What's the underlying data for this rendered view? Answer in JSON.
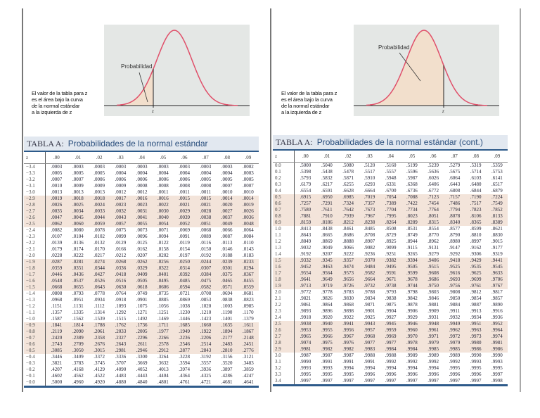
{
  "left": {
    "curve_label": "Probabilidad",
    "z_label": "z",
    "caption": [
      "El valor de la tabla para z",
      "es el área bajo la curva",
      "de la normal estándar",
      "a la izquierda de z"
    ],
    "title_prefix": "TABLA  A:",
    "title": "Probabilidades de la normal estándar",
    "columns": [
      "z",
      ".00",
      ".01",
      ".02",
      ".03",
      ".04",
      ".05",
      ".06",
      ".07",
      ".08",
      ".09"
    ],
    "rows": [
      [
        "−3.4",
        ".0003",
        ".0003",
        ".0003",
        ".0003",
        ".0003",
        ".0003",
        ".0003",
        ".0003",
        ".0003",
        ".0002"
      ],
      [
        "−3.3",
        ".0005",
        ".0005",
        ".0005",
        ".0004",
        ".0004",
        ".0004",
        ".0004",
        ".0004",
        ".0004",
        ".0003"
      ],
      [
        "−3.2",
        ".0007",
        ".0007",
        ".0006",
        ".0006",
        ".0006",
        ".0006",
        ".0006",
        ".0005",
        ".0005",
        ".0005"
      ],
      [
        "−3.1",
        ".0010",
        ".0009",
        ".0009",
        ".0009",
        ".0008",
        ".0008",
        ".0008",
        ".0008",
        ".0007",
        ".0007"
      ],
      [
        "−3.0",
        ".0013",
        ".0013",
        ".0013",
        ".0012",
        ".0012",
        ".0011",
        ".0011",
        ".0011",
        ".0010",
        ".0010"
      ],
      [
        "−2.9",
        ".0019",
        ".0018",
        ".0018",
        ".0017",
        ".0016",
        ".0016",
        ".0015",
        ".0015",
        ".0014",
        ".0014"
      ],
      [
        "−2.8",
        ".0026",
        ".0025",
        ".0024",
        ".0023",
        ".0023",
        ".0022",
        ".0021",
        ".0021",
        ".0020",
        ".0019"
      ],
      [
        "−2.7",
        ".0035",
        ".0034",
        ".0033",
        ".0032",
        ".0031",
        ".0030",
        ".0029",
        ".0028",
        ".0027",
        ".0026"
      ],
      [
        "−2.6",
        ".0047",
        ".0045",
        ".0044",
        ".0043",
        ".0041",
        ".0040",
        ".0039",
        ".0038",
        ".0037",
        ".0036"
      ],
      [
        "−2.5",
        ".0062",
        ".0060",
        ".0059",
        ".0057",
        ".0055",
        ".0054",
        ".0052",
        ".0051",
        ".0049",
        ".0048"
      ],
      [
        "−2.4",
        ".0082",
        ".0080",
        ".0078",
        ".0075",
        ".0073",
        ".0071",
        ".0069",
        ".0068",
        ".0066",
        ".0064"
      ],
      [
        "−2.3",
        ".0107",
        ".0104",
        ".0102",
        ".0099",
        ".0096",
        ".0094",
        ".0091",
        ".0089",
        ".0087",
        ".0084"
      ],
      [
        "−2.2",
        ".0139",
        ".0136",
        ".0132",
        ".0129",
        ".0125",
        ".0122",
        ".0119",
        ".0116",
        ".0113",
        ".0110"
      ],
      [
        "−2.1",
        ".0179",
        ".0174",
        ".0170",
        ".0166",
        ".0162",
        ".0158",
        ".0154",
        ".0150",
        ".0146",
        ".0143"
      ],
      [
        "−2.0",
        ".0228",
        ".0222",
        ".0217",
        ".0212",
        ".0207",
        ".0202",
        ".0197",
        ".0192",
        ".0188",
        ".0183"
      ],
      [
        "−1.9",
        ".0287",
        ".0281",
        ".0274",
        ".0268",
        ".0262",
        ".0256",
        ".0250",
        ".0244",
        ".0239",
        ".0233"
      ],
      [
        "−1.8",
        ".0359",
        ".0351",
        ".0344",
        ".0336",
        ".0329",
        ".0322",
        ".0314",
        ".0307",
        ".0301",
        ".0294"
      ],
      [
        "−1.7",
        ".0446",
        ".0436",
        ".0427",
        ".0418",
        ".0409",
        ".0401",
        ".0392",
        ".0384",
        ".0375",
        ".0367"
      ],
      [
        "−1.6",
        ".0548",
        ".0537",
        ".0526",
        ".0516",
        ".0505",
        ".0495",
        ".0485",
        ".0475",
        ".0465",
        ".0455"
      ],
      [
        "−1.5",
        ".0668",
        ".0655",
        ".0643",
        ".0630",
        ".0618",
        ".0606",
        ".0594",
        ".0582",
        ".0571",
        ".0559"
      ],
      [
        "−1.4",
        ".0808",
        ".0793",
        ".0778",
        ".0764",
        ".0749",
        ".0735",
        ".0721",
        ".0708",
        ".0694",
        ".0681"
      ],
      [
        "−1.3",
        ".0968",
        ".0951",
        ".0934",
        ".0918",
        ".0901",
        ".0885",
        ".0869",
        ".0853",
        ".0838",
        ".0823"
      ],
      [
        "−1.2",
        ".1151",
        ".1131",
        ".1112",
        ".1093",
        ".1075",
        ".1056",
        ".1038",
        ".1020",
        ".1003",
        ".0985"
      ],
      [
        "−1.1",
        ".1357",
        ".1335",
        ".1314",
        ".1292",
        ".1271",
        ".1251",
        ".1230",
        ".1210",
        ".1190",
        ".1170"
      ],
      [
        "−1.0",
        ".1587",
        ".1562",
        ".1539",
        ".1515",
        ".1492",
        ".1469",
        ".1446",
        ".1423",
        ".1401",
        ".1379"
      ],
      [
        "−0.9",
        ".1841",
        ".1814",
        ".1788",
        ".1762",
        ".1736",
        ".1711",
        ".1685",
        ".1660",
        ".1635",
        ".1611"
      ],
      [
        "−0.8",
        ".2119",
        ".2090",
        ".2061",
        ".2033",
        ".2005",
        ".1977",
        ".1949",
        ".1922",
        ".1894",
        ".1867"
      ],
      [
        "−0.7",
        ".2420",
        ".2389",
        ".2358",
        ".2327",
        ".2296",
        ".2266",
        ".2236",
        ".2206",
        ".2177",
        ".2148"
      ],
      [
        "−0.6",
        ".2743",
        ".2709",
        ".2676",
        ".2643",
        ".2611",
        ".2578",
        ".2546",
        ".2514",
        ".2483",
        ".2451"
      ],
      [
        "−0.5",
        ".3085",
        ".3050",
        ".3015",
        ".2981",
        ".2946",
        ".2912",
        ".2877",
        ".2843",
        ".2810",
        ".2776"
      ],
      [
        "−0.4",
        ".3446",
        ".3409",
        ".3372",
        ".3336",
        ".3300",
        ".3264",
        ".3228",
        ".3192",
        ".3156",
        ".3121"
      ],
      [
        "−0.3",
        ".3821",
        ".3783",
        ".3745",
        ".3707",
        ".3669",
        ".3632",
        ".3594",
        ".3557",
        ".3520",
        ".3483"
      ],
      [
        "−0.2",
        ".4207",
        ".4168",
        ".4129",
        ".4090",
        ".4052",
        ".4013",
        ".3974",
        ".3936",
        ".3897",
        ".3859"
      ],
      [
        "−0.1",
        ".4602",
        ".4562",
        ".4522",
        ".4483",
        ".4443",
        ".4404",
        ".4364",
        ".4325",
        ".4286",
        ".4247"
      ],
      [
        "−0.0",
        ".5000",
        ".4960",
        ".4920",
        ".4880",
        ".4840",
        ".4801",
        ".4761",
        ".4721",
        ".4681",
        ".4641"
      ]
    ]
  },
  "right": {
    "curve_label": "Probabilidad",
    "z_label": "z",
    "caption": [
      "El valor de la tabla para z",
      "es el área bajo la curva",
      "de la normal estándar",
      "a la izquierda de z"
    ],
    "title_prefix": "TABLA A:",
    "title": "Probabilidades de la normal estándar (cont.)",
    "columns": [
      "z",
      ".00",
      ".01",
      ".02",
      ".03",
      ".04",
      ".05",
      ".06",
      ".07",
      ".08",
      ".09"
    ],
    "rows": [
      [
        "0.0",
        ".5000",
        ".5040",
        ".5080",
        ".5120",
        ".5160",
        ".5199",
        ".5239",
        ".5279",
        ".5319",
        ".5359"
      ],
      [
        "0.1",
        ".5398",
        ".5438",
        ".5478",
        ".5517",
        ".5557",
        ".5596",
        ".5636",
        ".5675",
        ".5714",
        ".5753"
      ],
      [
        "0.2",
        ".5793",
        ".5832",
        ".5871",
        ".5910",
        ".5948",
        ".5987",
        ".6026",
        ".6064",
        ".6103",
        ".6141"
      ],
      [
        "0.3",
        ".6179",
        ".6217",
        ".6255",
        ".6293",
        ".6331",
        ".6368",
        ".6406",
        ".6443",
        ".6480",
        ".6517"
      ],
      [
        "0.4",
        ".6554",
        ".6591",
        ".6628",
        ".6664",
        ".6700",
        ".6736",
        ".6772",
        ".6808",
        ".6844",
        ".6879"
      ],
      [
        "0.5",
        ".6915",
        ".6950",
        ".6985",
        ".7019",
        ".7054",
        ".7088",
        ".7123",
        ".7157",
        ".7190",
        ".7224"
      ],
      [
        "0.6",
        ".7257",
        ".7291",
        ".7324",
        ".7357",
        ".7389",
        ".7422",
        ".7454",
        ".7486",
        ".7517",
        ".7549"
      ],
      [
        "0.7",
        ".7580",
        ".7611",
        ".7642",
        ".7673",
        ".7704",
        ".7734",
        ".7764",
        ".7794",
        ".7823",
        ".7852"
      ],
      [
        "0.8",
        ".7881",
        ".7910",
        ".7939",
        ".7967",
        ".7995",
        ".8023",
        ".8051",
        ".8078",
        ".8106",
        ".8133"
      ],
      [
        "0.9",
        ".8159",
        ".8186",
        ".8212",
        ".8238",
        ".8264",
        ".8289",
        ".8315",
        ".8340",
        ".8365",
        ".8389"
      ],
      [
        "1.0",
        ".8413",
        ".8438",
        ".8461",
        ".8485",
        ".8508",
        ".8531",
        ".8554",
        ".8577",
        ".8599",
        ".8621"
      ],
      [
        "1.1",
        ".8643",
        ".8665",
        ".8686",
        ".8708",
        ".8729",
        ".8749",
        ".8770",
        ".8790",
        ".8810",
        ".8830"
      ],
      [
        "1.2",
        ".8849",
        ".8869",
        ".8888",
        ".8907",
        ".8925",
        ".8944",
        ".8962",
        ".8980",
        ".8997",
        ".9015"
      ],
      [
        "1.3",
        ".9032",
        ".9049",
        ".9066",
        ".9082",
        ".9099",
        ".9115",
        ".9131",
        ".9147",
        ".9162",
        ".9177"
      ],
      [
        "1.4",
        ".9192",
        ".9207",
        ".9222",
        ".9236",
        ".9251",
        ".9265",
        ".9279",
        ".9292",
        ".9306",
        ".9319"
      ],
      [
        "1.5",
        ".9332",
        ".9345",
        ".9357",
        ".9370",
        ".9382",
        ".9394",
        ".9406",
        ".9418",
        ".9429",
        ".9441"
      ],
      [
        "1.6",
        ".9452",
        ".9463",
        ".9474",
        ".9484",
        ".9495",
        ".9505",
        ".9515",
        ".9525",
        ".9535",
        ".9545"
      ],
      [
        "1.7",
        ".9554",
        ".9564",
        ".9573",
        ".9582",
        ".9591",
        ".9599",
        ".9608",
        ".9616",
        ".9625",
        ".9633"
      ],
      [
        "1.8",
        ".9641",
        ".9649",
        ".9656",
        ".9664",
        ".9671",
        ".9678",
        ".9686",
        ".9693",
        ".9699",
        ".9706"
      ],
      [
        "1.9",
        ".9713",
        ".9719",
        ".9726",
        ".9732",
        ".9738",
        ".9744",
        ".9750",
        ".9756",
        ".9761",
        ".9767"
      ],
      [
        "2.0",
        ".9772",
        ".9778",
        ".9783",
        ".9788",
        ".9793",
        ".9798",
        ".9803",
        ".9808",
        ".9812",
        ".9817"
      ],
      [
        "2.1",
        ".9821",
        ".9826",
        ".9830",
        ".9834",
        ".9838",
        ".9842",
        ".9846",
        ".9850",
        ".9854",
        ".9857"
      ],
      [
        "2.2",
        ".9861",
        ".9864",
        ".9868",
        ".9871",
        ".9875",
        ".9878",
        ".9881",
        ".9884",
        ".9887",
        ".9890"
      ],
      [
        "2.3",
        ".9893",
        ".9896",
        ".9898",
        ".9901",
        ".9904",
        ".9906",
        ".9909",
        ".9911",
        ".9913",
        ".9916"
      ],
      [
        "2.4",
        ".9918",
        ".9920",
        ".9922",
        ".9925",
        ".9927",
        ".9929",
        ".9931",
        ".9932",
        ".9934",
        ".9936"
      ],
      [
        "2.5",
        ".9938",
        ".9940",
        ".9941",
        ".9943",
        ".9945",
        ".9946",
        ".9948",
        ".9949",
        ".9951",
        ".9952"
      ],
      [
        "2.6",
        ".9953",
        ".9955",
        ".9956",
        ".9957",
        ".9959",
        ".9960",
        ".9961",
        ".9962",
        ".9963",
        ".9964"
      ],
      [
        "2.7",
        ".9965",
        ".9966",
        ".9967",
        ".9968",
        ".9969",
        ".9970",
        ".9971",
        ".9972",
        ".9973",
        ".9974"
      ],
      [
        "2.8",
        ".9974",
        ".9975",
        ".9976",
        ".9977",
        ".9977",
        ".9978",
        ".9979",
        ".9979",
        ".9980",
        ".9981"
      ],
      [
        "2.9",
        ".9981",
        ".9982",
        ".9982",
        ".9983",
        ".9984",
        ".9984",
        ".9985",
        ".9985",
        ".9986",
        ".9986"
      ],
      [
        "3.0",
        ".9987",
        ".9987",
        ".9987",
        ".9988",
        ".9988",
        ".9989",
        ".9989",
        ".9989",
        ".9990",
        ".9990"
      ],
      [
        "3.1",
        ".9990",
        ".9991",
        ".9991",
        ".9991",
        ".9992",
        ".9992",
        ".9992",
        ".9992",
        ".9993",
        ".9993"
      ],
      [
        "3.2",
        ".9993",
        ".9993",
        ".9994",
        ".9994",
        ".9994",
        ".9994",
        ".9994",
        ".9995",
        ".9995",
        ".9995"
      ],
      [
        "3.3",
        ".9995",
        ".9995",
        ".9995",
        ".9996",
        ".9996",
        ".9996",
        ".9996",
        ".9996",
        ".9996",
        ".9997"
      ],
      [
        "3.4",
        ".9997",
        ".9997",
        ".9997",
        ".9997",
        ".9997",
        ".9997",
        ".9997",
        ".9997",
        ".9997",
        ".9998"
      ]
    ]
  },
  "colors": {
    "curve": "#e0506a",
    "shade": "#f2dfcc",
    "title_bg": "#e2e8f0",
    "accent": "#2d5a8a",
    "row_shade": "#f3e4da"
  }
}
